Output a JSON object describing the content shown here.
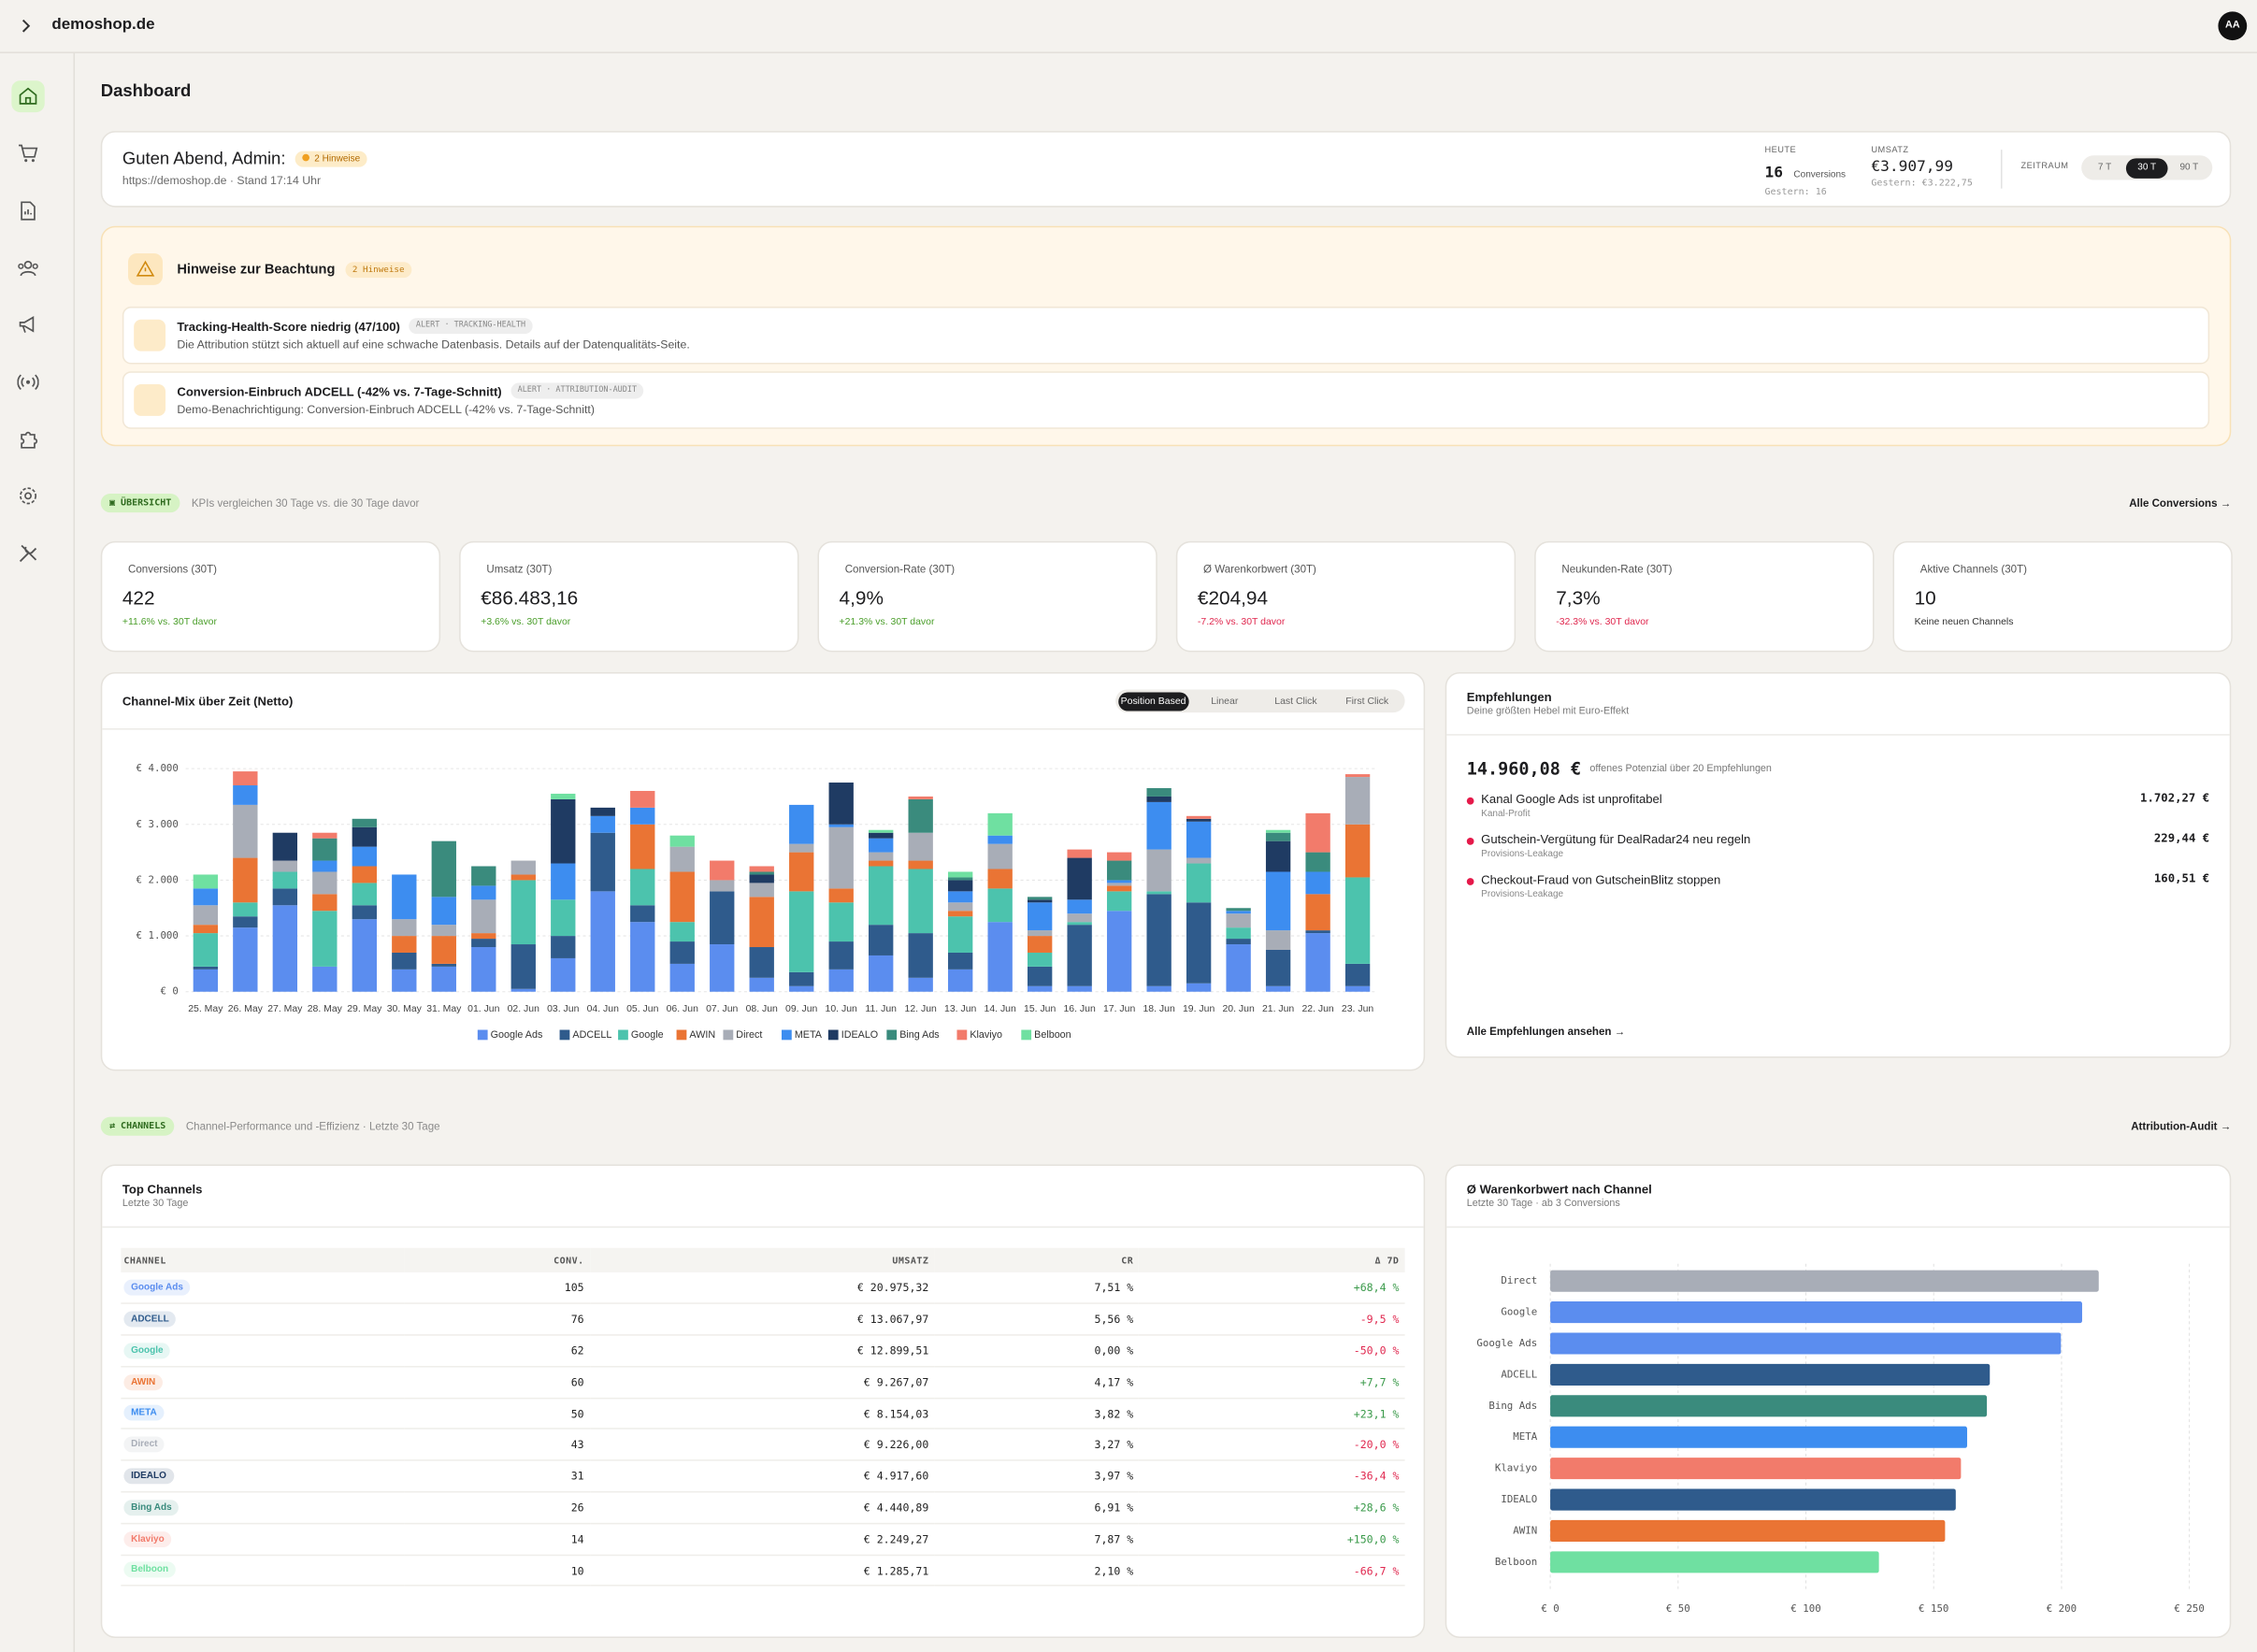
{
  "header": {
    "site": "demoshop.de",
    "avatar": "AA"
  },
  "page_title": "Dashboard",
  "greeting": {
    "title": "Guten Abend, Admin:",
    "badge": "2 Hinweise",
    "meta": "https://demoshop.de · Stand 17:14 Uhr",
    "today": {
      "label": "HEUTE",
      "value": "16",
      "unit": "Conversions",
      "previous": "Gestern: 16"
    },
    "revenue": {
      "label": "UMSATZ",
      "value": "€3.907,99",
      "previous": "Gestern: €3.222,75"
    },
    "range": {
      "label": "ZEITRAUM",
      "options": [
        "7 T",
        "30 T",
        "90 T"
      ],
      "active": 1
    }
  },
  "alerts": {
    "title": "Hinweise zur Beachtung",
    "badge": "2 Hinweise",
    "items": [
      {
        "title": "Tracking-Health-Score niedrig (47/100)",
        "tag": "ALERT · TRACKING-HEALTH",
        "text": "Die Attribution stützt sich aktuell auf eine schwache Datenbasis. Details auf der Datenqualitäts-Seite."
      },
      {
        "title": "Conversion-Einbruch ADCELL (-42% vs. 7-Tage-Schnitt)",
        "tag": "ALERT · ATTRIBUTION-AUDIT",
        "text": "Demo-Benachrichtigung: Conversion-Einbruch ADCELL (-42% vs. 7-Tage-Schnitt)"
      }
    ]
  },
  "overview": {
    "badge": "ÜBERSICHT",
    "text": "KPIs vergleichen 30 Tage vs. die 30 Tage davor",
    "link": "Alle Conversions →"
  },
  "kpis": [
    {
      "label": "Conversions (30T)",
      "value": "422",
      "delta": "+11.6% vs. 30T davor",
      "trend": "up",
      "sparkline": true
    },
    {
      "label": "Umsatz (30T)",
      "value": "€86.483,16",
      "delta": "+3.6% vs. 30T davor",
      "trend": "up",
      "sparkline": true
    },
    {
      "label": "Conversion-Rate (30T)",
      "value": "4,9%",
      "delta": "+21.3% vs. 30T davor",
      "trend": "up",
      "sparkline": false
    },
    {
      "label": "Ø Warenkorbwert (30T)",
      "value": "€204,94",
      "delta": "-7.2% vs. 30T davor",
      "trend": "down",
      "sparkline": true
    },
    {
      "label": "Neukunden-Rate (30T)",
      "value": "7,3%",
      "delta": "-32.3% vs. 30T davor",
      "trend": "down",
      "sparkline": false
    },
    {
      "label": "Aktive Channels (30T)",
      "value": "10",
      "delta": "Keine neuen Channels",
      "trend": "flat",
      "sparkline": false
    }
  ],
  "chart_data": [
    {
      "type": "bar",
      "stacked": true,
      "title": "Channel-Mix über Zeit (Netto)",
      "modes": [
        "Position Based",
        "Linear",
        "Last Click",
        "First Click"
      ],
      "active_mode": 0,
      "categories": [
        "25. May",
        "26. May",
        "27. May",
        "28. May",
        "29. May",
        "30. May",
        "31. May",
        "01. Jun",
        "02. Jun",
        "03. Jun",
        "04. Jun",
        "05. Jun",
        "06. Jun",
        "07. Jun",
        "08. Jun",
        "09. Jun",
        "10. Jun",
        "11. Jun",
        "12. Jun",
        "13. Jun",
        "14. Jun",
        "15. Jun",
        "16. Jun",
        "17. Jun",
        "18. Jun",
        "19. Jun",
        "20. Jun",
        "21. Jun",
        "22. Jun",
        "23. Jun"
      ],
      "series": [
        {
          "name": "Google Ads",
          "color": "#5b8def",
          "values": [
            400,
            1150,
            1550,
            450,
            1300,
            400,
            450,
            800,
            50,
            600,
            1800,
            1250,
            500,
            850,
            250,
            100,
            400,
            650,
            250,
            400,
            1250,
            100,
            100,
            1450,
            100,
            150,
            850,
            100,
            1050,
            100
          ]
        },
        {
          "name": "ADCELL",
          "color": "#2f5b8c",
          "values": [
            50,
            200,
            300,
            0,
            250,
            300,
            50,
            150,
            800,
            400,
            1050,
            300,
            400,
            950,
            550,
            250,
            500,
            550,
            800,
            300,
            0,
            350,
            1100,
            0,
            1650,
            1450,
            100,
            650,
            50,
            400
          ]
        },
        {
          "name": "Google",
          "color": "#4cc3ad",
          "values": [
            600,
            250,
            300,
            1000,
            400,
            0,
            0,
            0,
            1150,
            650,
            0,
            650,
            350,
            0,
            0,
            1450,
            700,
            1050,
            1150,
            650,
            600,
            250,
            50,
            350,
            50,
            700,
            200,
            0,
            0,
            1550
          ]
        },
        {
          "name": "AWIN",
          "color": "#ea7434",
          "values": [
            150,
            800,
            0,
            300,
            300,
            300,
            500,
            100,
            100,
            0,
            0,
            800,
            900,
            0,
            900,
            700,
            250,
            100,
            150,
            100,
            350,
            300,
            0,
            100,
            0,
            0,
            0,
            0,
            650,
            950
          ]
        },
        {
          "name": "Direct",
          "color": "#a8adb7",
          "values": [
            350,
            950,
            200,
            400,
            0,
            300,
            200,
            600,
            250,
            0,
            0,
            0,
            450,
            200,
            250,
            150,
            1100,
            150,
            500,
            150,
            450,
            100,
            150,
            50,
            750,
            100,
            250,
            350,
            0,
            850
          ]
        },
        {
          "name": "META",
          "color": "#3d8df0",
          "values": [
            300,
            350,
            0,
            200,
            350,
            800,
            500,
            250,
            0,
            650,
            300,
            300,
            0,
            0,
            0,
            700,
            50,
            250,
            0,
            200,
            150,
            500,
            250,
            50,
            850,
            650,
            50,
            1050,
            400,
            0
          ]
        },
        {
          "name": "IDEALO",
          "color": "#1f3b63",
          "values": [
            0,
            0,
            500,
            0,
            350,
            0,
            0,
            0,
            0,
            1150,
            150,
            0,
            0,
            0,
            150,
            0,
            750,
            100,
            0,
            200,
            0,
            50,
            750,
            0,
            100,
            50,
            0,
            550,
            0,
            0
          ]
        },
        {
          "name": "Bing Ads",
          "color": "#3a8b7d",
          "values": [
            0,
            0,
            0,
            400,
            150,
            0,
            1000,
            350,
            0,
            0,
            0,
            0,
            0,
            0,
            50,
            0,
            0,
            0,
            600,
            50,
            0,
            50,
            0,
            350,
            150,
            0,
            50,
            150,
            350,
            0
          ]
        },
        {
          "name": "Klaviyo",
          "color": "#f27b6b",
          "values": [
            0,
            250,
            0,
            100,
            0,
            0,
            0,
            0,
            0,
            0,
            0,
            300,
            0,
            350,
            100,
            0,
            0,
            0,
            50,
            0,
            0,
            0,
            150,
            150,
            0,
            50,
            0,
            0,
            700,
            50
          ]
        },
        {
          "name": "Belboon",
          "color": "#6fe0a1",
          "values": [
            250,
            0,
            0,
            0,
            0,
            0,
            0,
            0,
            0,
            100,
            0,
            0,
            200,
            0,
            0,
            0,
            0,
            50,
            0,
            100,
            400,
            0,
            0,
            0,
            0,
            0,
            0,
            50,
            0,
            0
          ]
        }
      ],
      "ylim": [
        0,
        4000
      ],
      "yticks": [
        {
          "value": 0,
          "label": "€ 0"
        },
        {
          "value": 1000,
          "label": "€ 1.000"
        },
        {
          "value": 2000,
          "label": "€ 2.000"
        },
        {
          "value": 3000,
          "label": "€ 3.000"
        },
        {
          "value": 4000,
          "label": "€ 4.000"
        }
      ],
      "grid": true,
      "legend": "bottom"
    },
    {
      "type": "bar",
      "horizontal": true,
      "title": "Ø Warenkorbwert nach Channel",
      "subtitle": "Letzte 30 Tage · ab 3 Conversions",
      "categories": [
        "Direct",
        "Google",
        "Google Ads",
        "ADCELL",
        "Bing Ads",
        "META",
        "Klaviyo",
        "IDEALO",
        "AWIN",
        "Belboon"
      ],
      "values": [
        214.56,
        208.06,
        199.76,
        171.95,
        170.8,
        163.08,
        160.66,
        158.63,
        154.45,
        128.57
      ],
      "colors": [
        "#a8adb7",
        "#5b8def",
        "#5b8def",
        "#2f5b8c",
        "#3a8b7d",
        "#3d8df0",
        "#f27b6b",
        "#2f5b8c",
        "#ea7434",
        "#6fe0a1"
      ],
      "xlim": [
        0,
        250
      ],
      "xticks": [
        {
          "value": 0,
          "label": "€ 0"
        },
        {
          "value": 50,
          "label": "€ 50"
        },
        {
          "value": 100,
          "label": "€ 100"
        },
        {
          "value": 150,
          "label": "€ 150"
        },
        {
          "value": 200,
          "label": "€ 200"
        },
        {
          "value": 250,
          "label": "€ 250"
        }
      ],
      "grid": true
    }
  ],
  "recommendations": {
    "title": "Empfehlungen",
    "subtitle": "Deine größten Hebel mit Euro-Effekt",
    "total": "14.960,08 €",
    "total_text": "offenes Potenzial über 20 Empfehlungen",
    "items": [
      {
        "title": "Kanal Google Ads ist unprofitabel",
        "category": "Kanal-Profit",
        "amount": "1.702,27 €"
      },
      {
        "title": "Gutschein-Vergütung für DealRadar24 neu regeln",
        "category": "Provisions-Leakage",
        "amount": "229,44 €"
      },
      {
        "title": "Checkout-Fraud von GutscheinBlitz stoppen",
        "category": "Provisions-Leakage",
        "amount": "160,51 €"
      }
    ],
    "link": "Alle Empfehlungen ansehen →"
  },
  "channels_section": {
    "badge": "CHANNELS",
    "text": "Channel-Performance und -Effizienz · Letzte 30 Tage",
    "link": "Attribution-Audit →"
  },
  "top_channels": {
    "title": "Top Channels",
    "subtitle": "Letzte 30 Tage",
    "columns": [
      "CHANNEL",
      "CONV.",
      "UMSATZ",
      "CR",
      "Δ 7D"
    ],
    "rows": [
      [
        "Google Ads",
        "105",
        "€ 20.975,32",
        "7,51 %",
        "+68,4 %"
      ],
      [
        "ADCELL",
        "76",
        "€ 13.067,97",
        "5,56 %",
        "-9,5 %"
      ],
      [
        "Google",
        "62",
        "€ 12.899,51",
        "0,00 %",
        "-50,0 %"
      ],
      [
        "AWIN",
        "60",
        "€ 9.267,07",
        "4,17 %",
        "+7,7 %"
      ],
      [
        "META",
        "50",
        "€ 8.154,03",
        "3,82 %",
        "+23,1 %"
      ],
      [
        "Direct",
        "43",
        "€ 9.226,00",
        "3,27 %",
        "-20,0 %"
      ],
      [
        "IDEALO",
        "31",
        "€ 4.917,60",
        "3,97 %",
        "-36,4 %"
      ],
      [
        "Bing Ads",
        "26",
        "€ 4.440,89",
        "6,91 %",
        "+28,6 %"
      ],
      [
        "Klaviyo",
        "14",
        "€ 2.249,27",
        "7,87 %",
        "+150,0 %"
      ],
      [
        "Belboon",
        "10",
        "€ 1.285,71",
        "2,10 %",
        "-66,7 %"
      ]
    ]
  }
}
